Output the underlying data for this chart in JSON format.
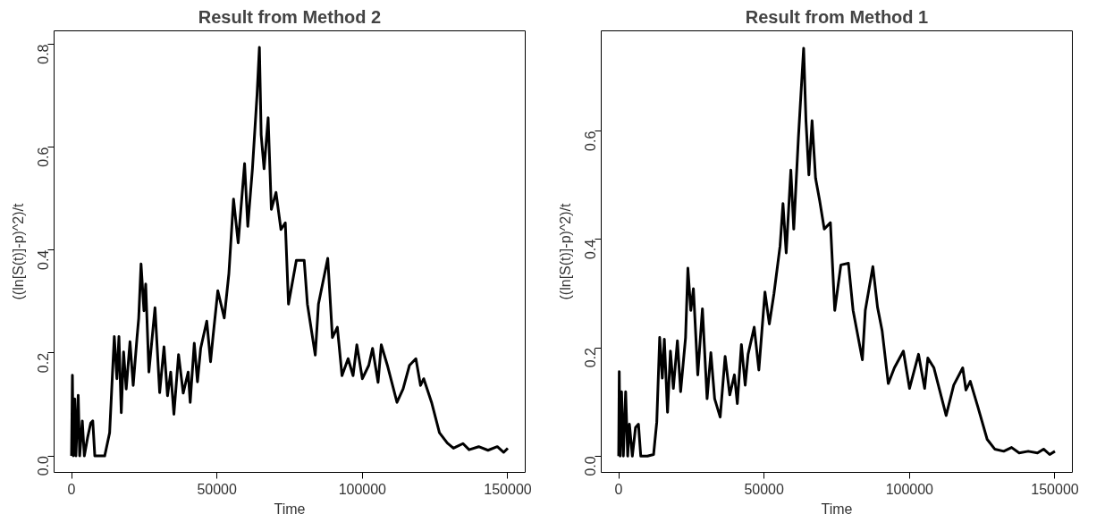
{
  "chart_data": [
    {
      "type": "line",
      "title": "Result from Method 2",
      "xlabel": "Time",
      "ylabel": "((ln[S(t)]-p)^2)/t",
      "grid": false,
      "line_style": "solid",
      "xlim": [
        -6000,
        156000
      ],
      "xticks": [
        0,
        50000,
        100000,
        150000
      ],
      "ylim": [
        -0.032,
        0.826
      ],
      "yticks": [
        {
          "value": 0,
          "label": "0.0"
        },
        0.2,
        0.4,
        0.6,
        0.8
      ],
      "series": [
        {
          "color": "#000000",
          "x": [
            0,
            300,
            600,
            1100,
            1500,
            2300,
            2800,
            3700,
            4400,
            5500,
            6600,
            7300,
            8000,
            9300,
            11400,
            13100,
            14100,
            14700,
            15600,
            16300,
            17100,
            17900,
            18800,
            20100,
            21200,
            22500,
            23100,
            23900,
            24900,
            25500,
            26600,
            28700,
            30300,
            31800,
            33000,
            34100,
            35200,
            36800,
            38400,
            40100,
            40800,
            42200,
            43300,
            44400,
            46500,
            47800,
            48700,
            50300,
            52500,
            54100,
            55700,
            57300,
            59500,
            60600,
            62200,
            63800,
            64600,
            65200,
            66200,
            67600,
            68700,
            70300,
            72000,
            73500,
            74600,
            77300,
            80000,
            81100,
            83800,
            84900,
            88100,
            89700,
            91400,
            93000,
            95100,
            96800,
            98100,
            100000,
            102200,
            103500,
            105400,
            106500,
            108600,
            111900,
            114000,
            116200,
            118400,
            120000,
            121100,
            123800,
            126500,
            129200,
            131300,
            134600,
            136700,
            140000,
            143200,
            146400,
            148600,
            150000
          ],
          "values": [
            0.0,
            0.157,
            0.0,
            0.111,
            0.0,
            0.118,
            0.0,
            0.068,
            0.0,
            0.035,
            0.064,
            0.068,
            0.0,
            0.0,
            0.0,
            0.045,
            0.163,
            0.232,
            0.15,
            0.232,
            0.084,
            0.202,
            0.13,
            0.222,
            0.137,
            0.229,
            0.268,
            0.373,
            0.282,
            0.334,
            0.163,
            0.288,
            0.123,
            0.212,
            0.117,
            0.163,
            0.081,
            0.197,
            0.122,
            0.163,
            0.104,
            0.219,
            0.144,
            0.209,
            0.262,
            0.183,
            0.235,
            0.321,
            0.268,
            0.354,
            0.499,
            0.414,
            0.568,
            0.446,
            0.558,
            0.703,
            0.794,
            0.624,
            0.558,
            0.657,
            0.479,
            0.512,
            0.44,
            0.453,
            0.295,
            0.38,
            0.38,
            0.295,
            0.196,
            0.295,
            0.384,
            0.23,
            0.25,
            0.156,
            0.189,
            0.156,
            0.216,
            0.15,
            0.176,
            0.209,
            0.143,
            0.216,
            0.176,
            0.104,
            0.13,
            0.176,
            0.189,
            0.137,
            0.15,
            0.104,
            0.045,
            0.025,
            0.015,
            0.024,
            0.012,
            0.018,
            0.011,
            0.018,
            0.007,
            0.015
          ]
        }
      ]
    },
    {
      "type": "line",
      "title": "Result from Method 1",
      "xlabel": "Time",
      "ylabel": "((ln[S(t)]-p)^2)/t",
      "grid": false,
      "line_style": "solid",
      "xlim": [
        -6000,
        156000
      ],
      "xticks": [
        0,
        50000,
        100000,
        150000
      ],
      "ylim": [
        -0.03,
        0.785
      ],
      "yticks": [
        {
          "value": 0,
          "label": "0.0"
        },
        0.2,
        0.4,
        0.6
      ],
      "series": [
        {
          "color": "#000000",
          "x": [
            0,
            200,
            500,
            1000,
            1600,
            2400,
            3100,
            3700,
            4700,
            5800,
            6800,
            7600,
            9900,
            12000,
            13100,
            14100,
            15000,
            15700,
            16800,
            17800,
            18800,
            20200,
            21300,
            23000,
            23800,
            24800,
            25700,
            27200,
            28800,
            30400,
            31700,
            33000,
            34900,
            36600,
            38200,
            39800,
            40800,
            42200,
            43500,
            44500,
            46600,
            48200,
            50300,
            51800,
            53400,
            55500,
            56500,
            57600,
            59200,
            60200,
            61800,
            63600,
            64400,
            65400,
            66500,
            67700,
            69100,
            70700,
            72800,
            74300,
            76400,
            79000,
            80600,
            83800,
            84800,
            87400,
            89000,
            90600,
            92700,
            94800,
            97900,
            100000,
            103100,
            105200,
            106300,
            108400,
            112600,
            115200,
            118300,
            119400,
            120900,
            123500,
            126700,
            129300,
            132400,
            135100,
            137700,
            140800,
            144000,
            146100,
            148200,
            150000
          ],
          "values": [
            0.0,
            0.156,
            0.0,
            0.119,
            0.0,
            0.119,
            0.0,
            0.059,
            0.0,
            0.053,
            0.059,
            0.0,
            0.0,
            0.003,
            0.063,
            0.219,
            0.144,
            0.216,
            0.081,
            0.194,
            0.125,
            0.213,
            0.119,
            0.219,
            0.347,
            0.269,
            0.309,
            0.15,
            0.272,
            0.106,
            0.191,
            0.106,
            0.072,
            0.184,
            0.113,
            0.15,
            0.097,
            0.206,
            0.131,
            0.188,
            0.238,
            0.159,
            0.303,
            0.244,
            0.3,
            0.388,
            0.466,
            0.375,
            0.528,
            0.419,
            0.588,
            0.753,
            0.619,
            0.519,
            0.619,
            0.513,
            0.472,
            0.419,
            0.431,
            0.269,
            0.353,
            0.356,
            0.269,
            0.178,
            0.269,
            0.35,
            0.275,
            0.231,
            0.134,
            0.163,
            0.194,
            0.125,
            0.188,
            0.125,
            0.181,
            0.163,
            0.075,
            0.131,
            0.163,
            0.122,
            0.138,
            0.091,
            0.031,
            0.013,
            0.009,
            0.016,
            0.006,
            0.009,
            0.006,
            0.013,
            0.003,
            0.009
          ]
        }
      ]
    }
  ]
}
